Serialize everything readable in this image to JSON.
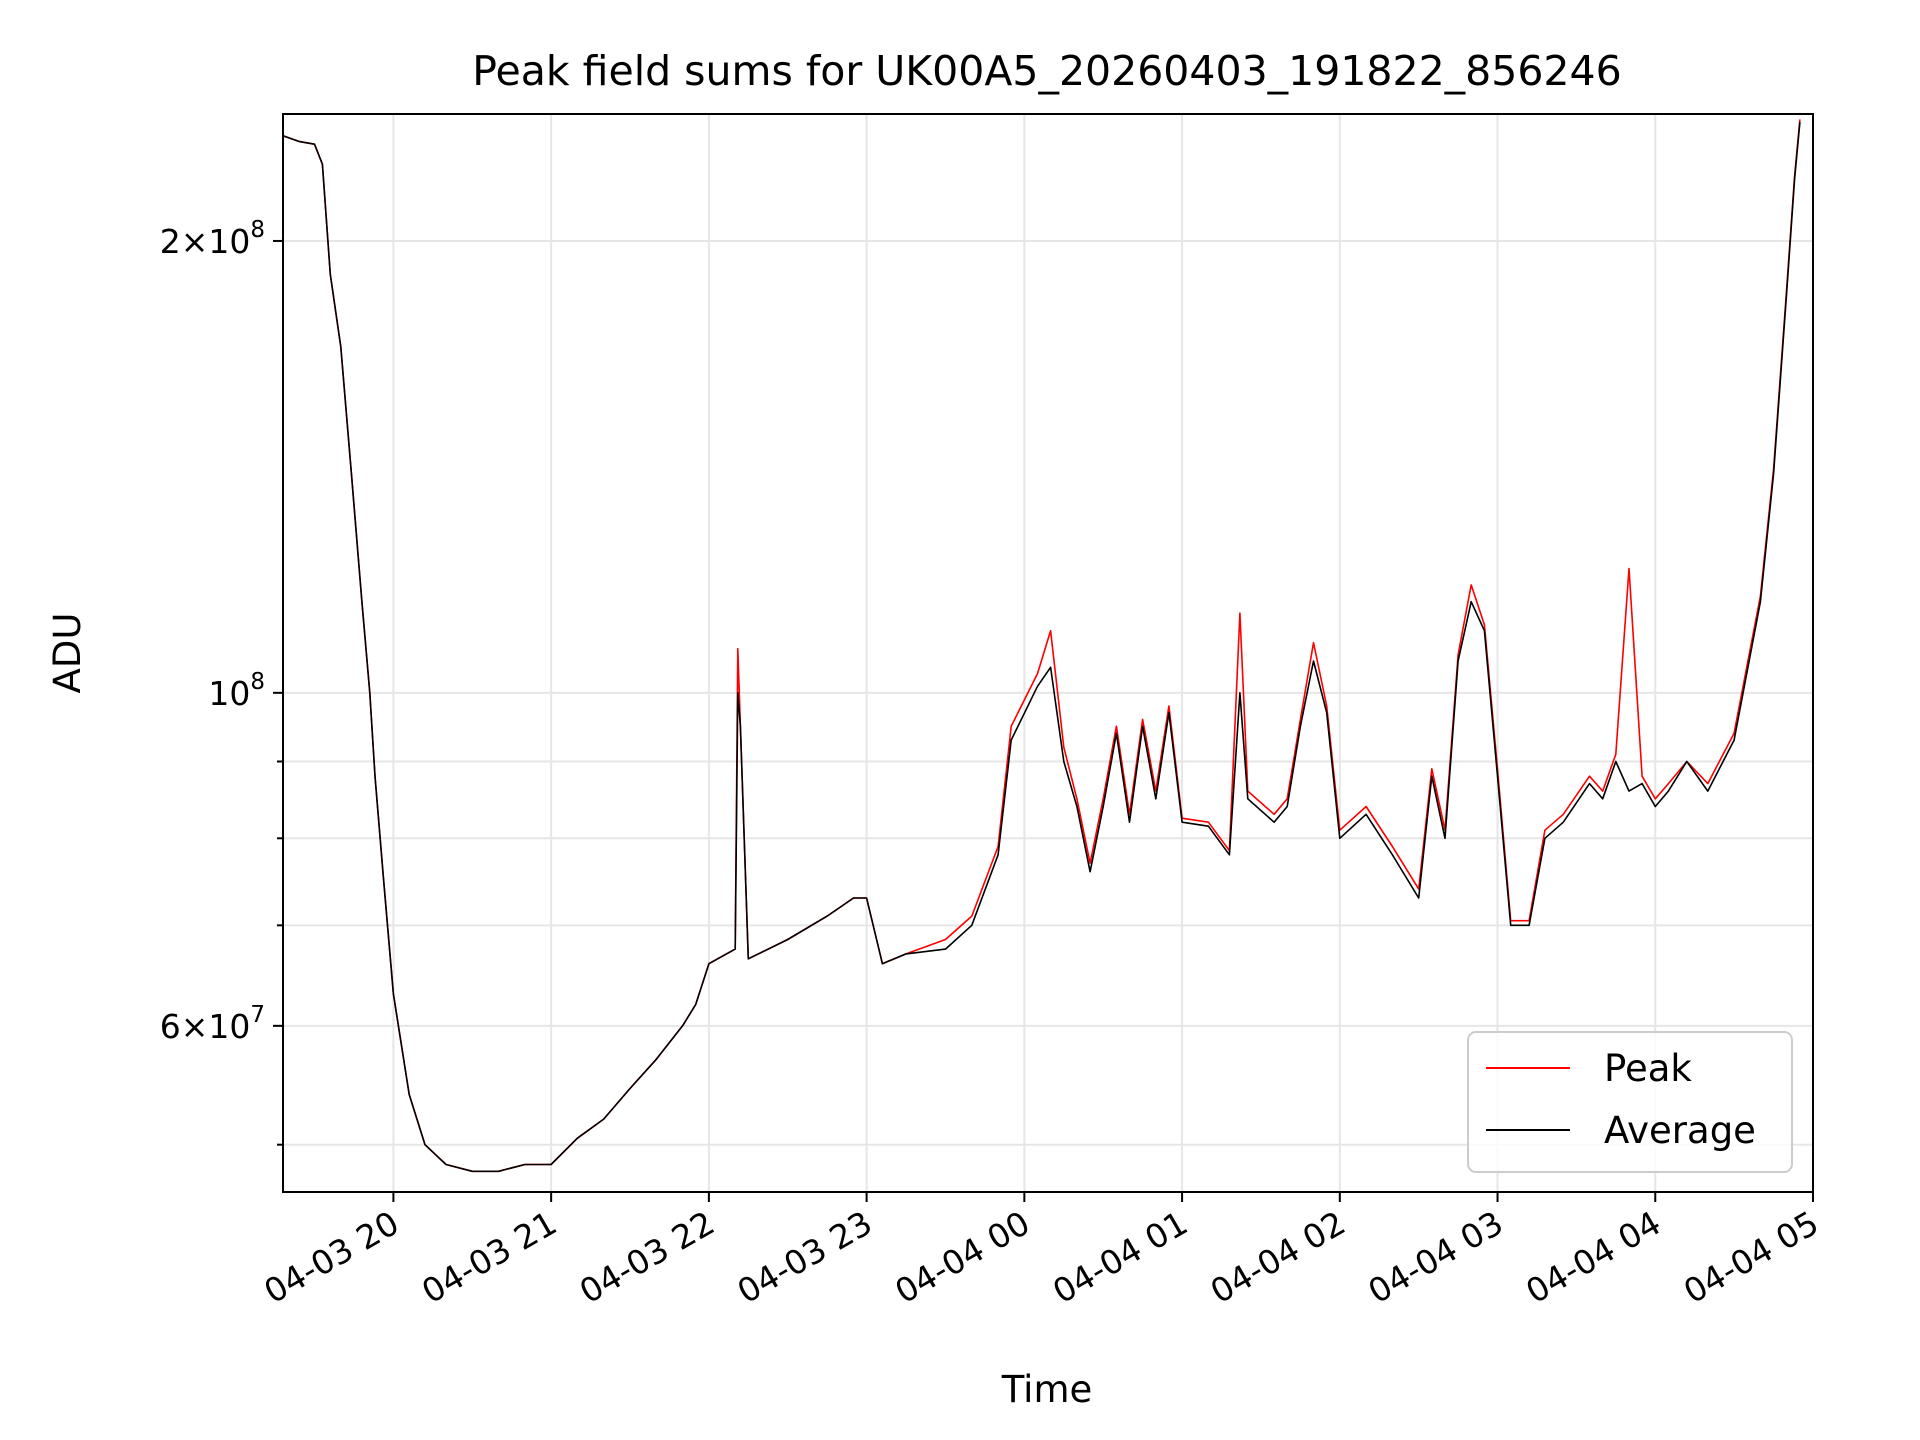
{
  "chart_data": {
    "type": "line",
    "title": "Peak field sums for UK00A5_20260403_191822_856246",
    "xlabel": "Time",
    "ylabel": "ADU",
    "yscale": "log",
    "ylim": [
      46500000,
      243000000
    ],
    "xlim": [
      "2026-04-03 19:18",
      "2026-04-04 05:00"
    ],
    "x_ticks": [
      "04-03 20",
      "04-03 21",
      "04-03 22",
      "04-03 23",
      "04-04 00",
      "04-04 01",
      "04-04 02",
      "04-04 03",
      "04-04 04",
      "04-04 05"
    ],
    "y_ticks": [
      {
        "value": 200000000,
        "mantissa": "2",
        "exp": "8"
      },
      {
        "value": 100000000,
        "mantissa": "",
        "exp": "8"
      },
      {
        "value": 60000000,
        "mantissa": "6",
        "exp": "7"
      }
    ],
    "grid": true,
    "legend_position": "lower right",
    "colors": {
      "Peak": "#ff0000",
      "Average": "#000000"
    },
    "series": [
      {
        "name": "Average",
        "x": [
          "2026-04-03 19:18",
          "2026-04-03 19:24",
          "2026-04-03 19:30",
          "2026-04-03 19:33",
          "2026-04-03 19:36",
          "2026-04-03 19:40",
          "2026-04-03 19:44",
          "2026-04-03 19:48",
          "2026-04-03 19:51",
          "2026-04-03 19:53",
          "2026-04-03 19:56",
          "2026-04-03 20:00",
          "2026-04-03 20:06",
          "2026-04-03 20:12",
          "2026-04-03 20:20",
          "2026-04-03 20:30",
          "2026-04-03 20:40",
          "2026-04-03 20:50",
          "2026-04-03 21:00",
          "2026-04-03 21:10",
          "2026-04-03 21:20",
          "2026-04-03 21:30",
          "2026-04-03 21:40",
          "2026-04-03 21:50",
          "2026-04-03 21:55",
          "2026-04-03 22:00",
          "2026-04-03 22:10",
          "2026-04-03 22:11",
          "2026-04-03 22:12",
          "2026-04-03 22:15",
          "2026-04-03 22:30",
          "2026-04-03 22:45",
          "2026-04-03 22:55",
          "2026-04-03 23:00",
          "2026-04-03 23:06",
          "2026-04-03 23:15",
          "2026-04-03 23:30",
          "2026-04-03 23:40",
          "2026-04-03 23:50",
          "2026-04-03 23:55",
          "2026-04-04 00:05",
          "2026-04-04 00:10",
          "2026-04-04 00:15",
          "2026-04-04 00:20",
          "2026-04-04 00:25",
          "2026-04-04 00:30",
          "2026-04-04 00:35",
          "2026-04-04 00:40",
          "2026-04-04 00:45",
          "2026-04-04 00:50",
          "2026-04-04 00:55",
          "2026-04-04 01:00",
          "2026-04-04 01:10",
          "2026-04-04 01:18",
          "2026-04-04 01:22",
          "2026-04-04 01:25",
          "2026-04-04 01:35",
          "2026-04-04 01:40",
          "2026-04-04 01:45",
          "2026-04-04 01:50",
          "2026-04-04 01:55",
          "2026-04-04 02:00",
          "2026-04-04 02:10",
          "2026-04-04 02:20",
          "2026-04-04 02:30",
          "2026-04-04 02:35",
          "2026-04-04 02:40",
          "2026-04-04 02:45",
          "2026-04-04 02:50",
          "2026-04-04 02:55",
          "2026-04-04 03:00",
          "2026-04-04 03:05",
          "2026-04-04 03:12",
          "2026-04-04 03:18",
          "2026-04-04 03:25",
          "2026-04-04 03:35",
          "2026-04-04 03:40",
          "2026-04-04 03:45",
          "2026-04-04 03:50",
          "2026-04-04 03:55",
          "2026-04-04 04:00",
          "2026-04-04 04:05",
          "2026-04-04 04:12",
          "2026-04-04 04:20",
          "2026-04-04 04:30",
          "2026-04-04 04:40",
          "2026-04-04 04:45",
          "2026-04-04 04:50",
          "2026-04-04 04:53",
          "2026-04-04 04:55"
        ],
        "y": [
          235000000,
          233000000,
          232000000,
          225000000,
          190000000,
          170000000,
          140000000,
          115000000,
          100000000,
          88000000,
          76000000,
          63000000,
          54000000,
          50000000,
          48500000,
          48000000,
          48000000,
          48500000,
          48500000,
          50500000,
          52000000,
          54500000,
          57000000,
          60000000,
          62000000,
          66000000,
          67500000,
          100000000,
          95000000,
          66500000,
          68500000,
          71000000,
          73000000,
          73000000,
          66000000,
          67000000,
          67500000,
          70000000,
          78000000,
          93000000,
          101000000,
          104000000,
          90000000,
          84000000,
          76000000,
          84000000,
          94000000,
          82000000,
          95000000,
          85000000,
          97000000,
          82000000,
          81500000,
          78000000,
          100000000,
          85000000,
          82000000,
          84000000,
          95000000,
          105000000,
          97000000,
          80000000,
          83000000,
          78000000,
          73000000,
          88000000,
          80000000,
          105000000,
          115000000,
          110000000,
          88000000,
          70000000,
          70000000,
          80000000,
          82000000,
          87000000,
          85000000,
          90000000,
          86000000,
          87000000,
          84000000,
          86000000,
          90000000,
          86000000,
          93000000,
          115000000,
          140000000,
          185000000,
          220000000,
          240000000
        ]
      },
      {
        "name": "Peak",
        "x": [
          "2026-04-03 19:18",
          "2026-04-03 19:24",
          "2026-04-03 19:30",
          "2026-04-03 19:33",
          "2026-04-03 19:36",
          "2026-04-03 19:40",
          "2026-04-03 19:44",
          "2026-04-03 19:48",
          "2026-04-03 19:51",
          "2026-04-03 19:53",
          "2026-04-03 19:56",
          "2026-04-03 20:00",
          "2026-04-03 20:06",
          "2026-04-03 20:12",
          "2026-04-03 20:20",
          "2026-04-03 20:30",
          "2026-04-03 20:40",
          "2026-04-03 20:50",
          "2026-04-03 21:00",
          "2026-04-03 21:10",
          "2026-04-03 21:20",
          "2026-04-03 21:30",
          "2026-04-03 21:40",
          "2026-04-03 21:50",
          "2026-04-03 21:55",
          "2026-04-03 22:00",
          "2026-04-03 22:10",
          "2026-04-03 22:11",
          "2026-04-03 22:12",
          "2026-04-03 22:15",
          "2026-04-03 22:30",
          "2026-04-03 22:45",
          "2026-04-03 22:55",
          "2026-04-03 23:00",
          "2026-04-03 23:06",
          "2026-04-03 23:15",
          "2026-04-03 23:30",
          "2026-04-03 23:40",
          "2026-04-03 23:50",
          "2026-04-03 23:55",
          "2026-04-04 00:05",
          "2026-04-04 00:10",
          "2026-04-04 00:15",
          "2026-04-04 00:20",
          "2026-04-04 00:25",
          "2026-04-04 00:30",
          "2026-04-04 00:35",
          "2026-04-04 00:40",
          "2026-04-04 00:45",
          "2026-04-04 00:50",
          "2026-04-04 00:55",
          "2026-04-04 01:00",
          "2026-04-04 01:10",
          "2026-04-04 01:18",
          "2026-04-04 01:22",
          "2026-04-04 01:25",
          "2026-04-04 01:35",
          "2026-04-04 01:40",
          "2026-04-04 01:45",
          "2026-04-04 01:50",
          "2026-04-04 01:55",
          "2026-04-04 02:00",
          "2026-04-04 02:10",
          "2026-04-04 02:20",
          "2026-04-04 02:30",
          "2026-04-04 02:35",
          "2026-04-04 02:40",
          "2026-04-04 02:45",
          "2026-04-04 02:50",
          "2026-04-04 02:55",
          "2026-04-04 03:00",
          "2026-04-04 03:05",
          "2026-04-04 03:12",
          "2026-04-04 03:18",
          "2026-04-04 03:25",
          "2026-04-04 03:35",
          "2026-04-04 03:40",
          "2026-04-04 03:45",
          "2026-04-04 03:50",
          "2026-04-04 03:55",
          "2026-04-04 04:00",
          "2026-04-04 04:05",
          "2026-04-04 04:12",
          "2026-04-04 04:20",
          "2026-04-04 04:30",
          "2026-04-04 04:40",
          "2026-04-04 04:45",
          "2026-04-04 04:50",
          "2026-04-04 04:53",
          "2026-04-04 04:55"
        ],
        "y": [
          235000000,
          233000000,
          232000000,
          225000000,
          190000000,
          170000000,
          140000000,
          115000000,
          100000000,
          88000000,
          76000000,
          63000000,
          54000000,
          50000000,
          48500000,
          48000000,
          48000000,
          48500000,
          48500000,
          50500000,
          52000000,
          54500000,
          57000000,
          60000000,
          62000000,
          66000000,
          67500000,
          107000000,
          95000000,
          66500000,
          68500000,
          71000000,
          73000000,
          73000000,
          66000000,
          67000000,
          68500000,
          71000000,
          79000000,
          95000000,
          103000000,
          110000000,
          92000000,
          85000000,
          77000000,
          85000000,
          95000000,
          83000000,
          96000000,
          86000000,
          98000000,
          82500000,
          82000000,
          78500000,
          113000000,
          86000000,
          83000000,
          85000000,
          96000000,
          108000000,
          98000000,
          81000000,
          84000000,
          79000000,
          74000000,
          89000000,
          81000000,
          106000000,
          118000000,
          111000000,
          89000000,
          70500000,
          70500000,
          81000000,
          83000000,
          88000000,
          86000000,
          91000000,
          121000000,
          88000000,
          85000000,
          87000000,
          90000000,
          87000000,
          94000000,
          116000000,
          141000000,
          186000000,
          221000000,
          241000000
        ]
      }
    ]
  },
  "legend": {
    "peak_label": "Peak",
    "average_label": "Average"
  }
}
